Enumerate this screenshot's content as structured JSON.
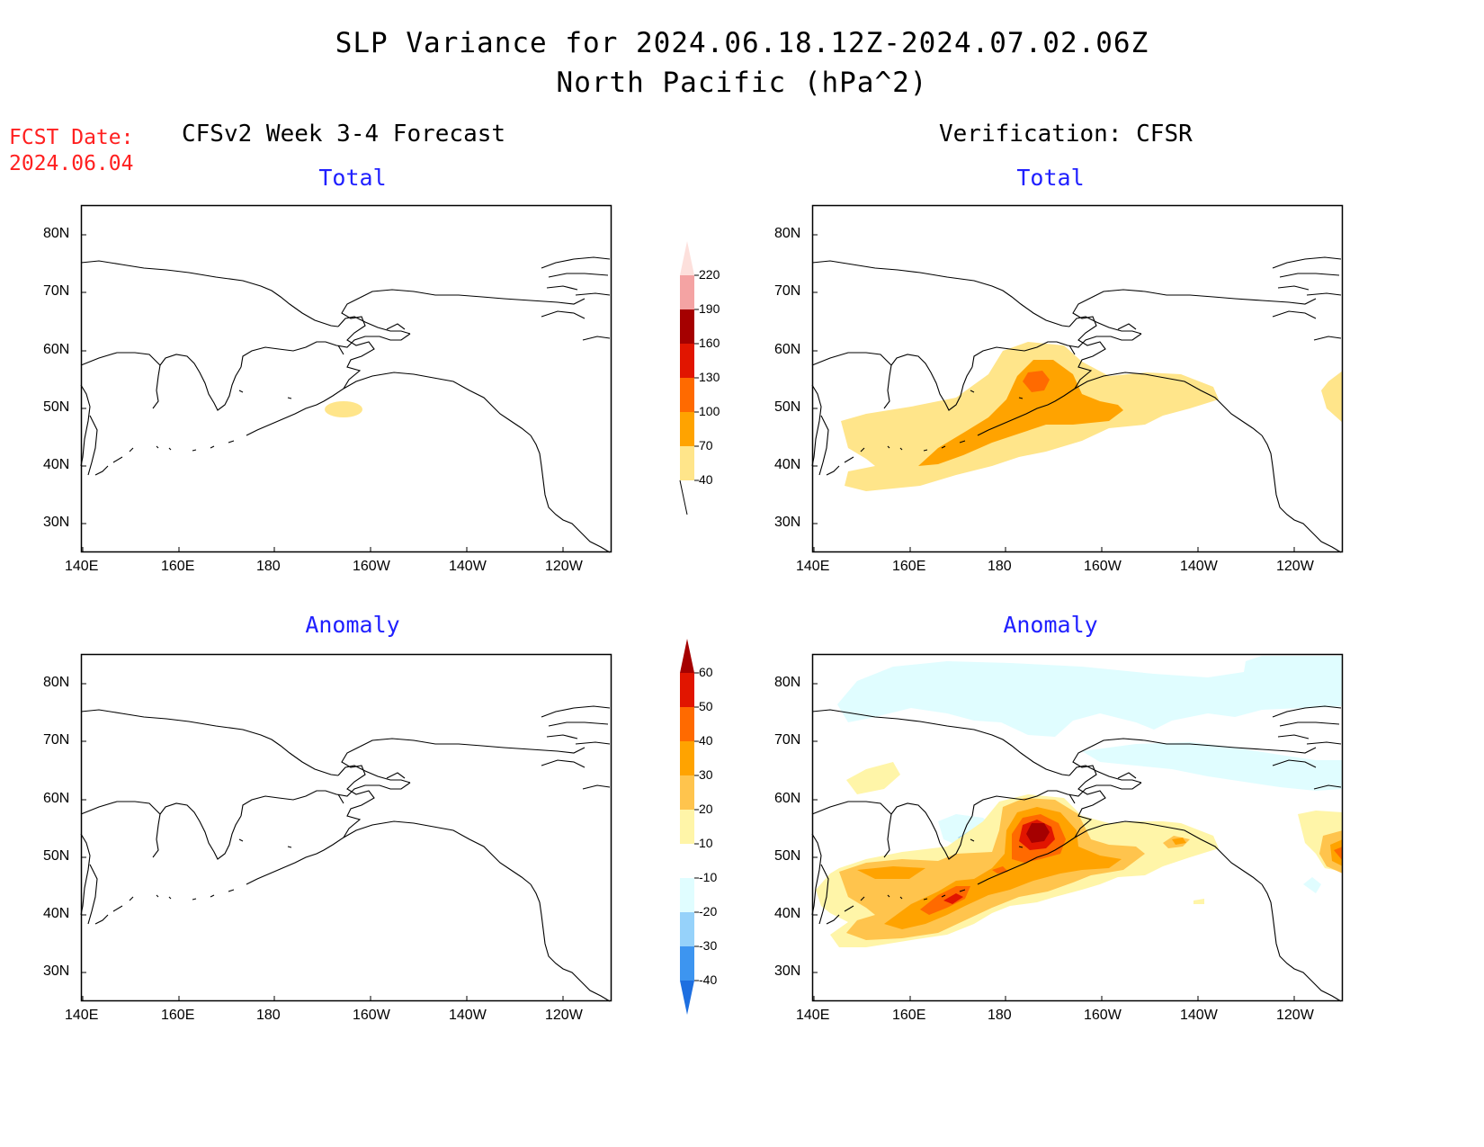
{
  "title": {
    "line1": "SLP Variance for 2024.06.18.12Z-2024.07.02.06Z",
    "line2": "North Pacific (hPa^2)"
  },
  "fcst_date": {
    "label": "FCST Date:",
    "value": "2024.06.04"
  },
  "columns": {
    "left": "CFSv2 Week 3-4 Forecast",
    "right": "Verification: CFSR"
  },
  "panels": {
    "total_label": "Total",
    "anomaly_label": "Anomaly"
  },
  "axes": {
    "lat_ticks": [
      "80N",
      "70N",
      "60N",
      "50N",
      "40N",
      "30N"
    ],
    "lon_ticks": [
      "140E",
      "160E",
      "180",
      "160W",
      "140W",
      "120W"
    ],
    "lat_range": [
      25,
      85
    ],
    "lon_range": [
      140,
      250
    ]
  },
  "colorbars": {
    "total": {
      "labels": [
        "220",
        "190",
        "160",
        "130",
        "100",
        "70",
        "40"
      ],
      "colors": [
        "#fde0dc",
        "#f4a3a3",
        "#a50000",
        "#e11500",
        "#ff6a00",
        "#ffa300",
        "#ffe58a"
      ]
    },
    "anomaly": {
      "labels": [
        "60",
        "50",
        "40",
        "30",
        "20",
        "10",
        "-10",
        "-20",
        "-30",
        "-40"
      ],
      "colors": [
        "#a50000",
        "#e11500",
        "#ff6a00",
        "#ffa300",
        "#ffc44d",
        "#fff5a8",
        "#ffffff",
        "#e0fdff",
        "#96d2fa",
        "#3d95f0",
        "#1e6fe0"
      ]
    }
  }
}
